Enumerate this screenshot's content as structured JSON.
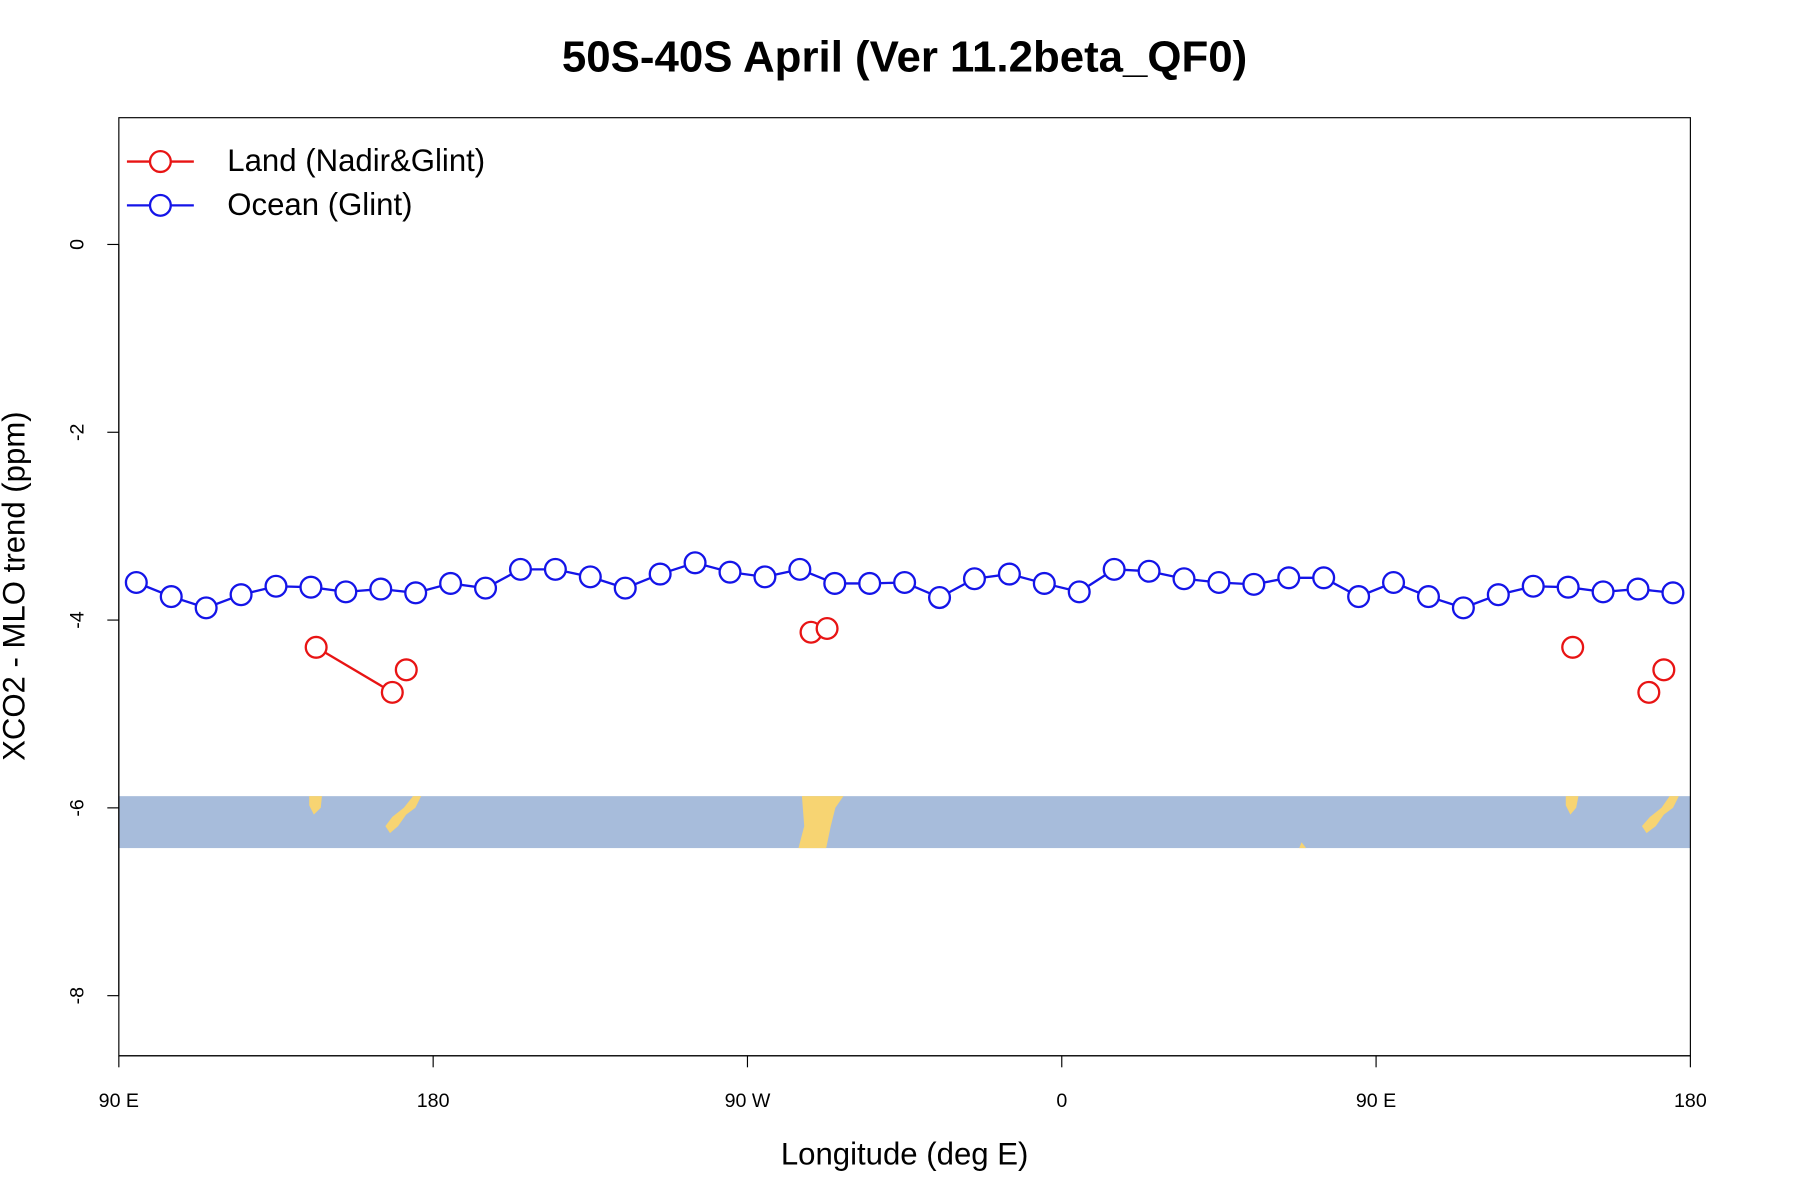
{
  "chart_data": {
    "type": "line",
    "title": "50S-40S April (Ver 11.2beta_QF0)",
    "xlabel": "Longitude (deg E)",
    "ylabel": "XCO2 - MLO trend (ppm)",
    "xlim": [
      90,
      540
    ],
    "ylim": [
      -8.64,
      1.35
    ],
    "xticks": [
      {
        "value": 90,
        "label": "90 E"
      },
      180,
      {
        "value": 270,
        "label": "90 W"
      },
      {
        "value": 360,
        "label": "0"
      },
      {
        "value": 450,
        "label": "90 E"
      },
      {
        "value": 540,
        "label": "180"
      }
    ],
    "yticks": [
      0,
      -2,
      -4,
      -6,
      -8
    ],
    "legend": "top-left",
    "series": [
      {
        "name": "Land (Nadir&Glint)",
        "color": "#e81414",
        "x": [
          146.5,
          168.3,
          null,
          172.3,
          null,
          288.2,
          null,
          292.8,
          null,
          506.3,
          null,
          528.1,
          null,
          532.4
        ],
        "values": [
          -4.29,
          -4.77,
          null,
          -4.53,
          null,
          -4.13,
          null,
          -4.09,
          null,
          -4.29,
          null,
          -4.77,
          null,
          -4.53
        ]
      },
      {
        "name": "Ocean (Glint)",
        "color": "#1414e8",
        "x": [
          95,
          105,
          115,
          125,
          135,
          145,
          155,
          165,
          175,
          185,
          195,
          205,
          215,
          225,
          235,
          245,
          255,
          265,
          275,
          285,
          295,
          305,
          315,
          325,
          335,
          345,
          355,
          365,
          375,
          385,
          395,
          405,
          415,
          425,
          435,
          445,
          455,
          465,
          475,
          485,
          495,
          505,
          515,
          525,
          535
        ],
        "values": [
          -3.6,
          -3.75,
          -3.87,
          -3.73,
          -3.64,
          -3.65,
          -3.7,
          -3.67,
          -3.71,
          -3.61,
          -3.66,
          -3.46,
          -3.46,
          -3.54,
          -3.66,
          -3.51,
          -3.39,
          -3.49,
          -3.54,
          -3.46,
          -3.61,
          -3.61,
          -3.6,
          -3.76,
          -3.56,
          -3.51,
          -3.61,
          -3.7,
          -3.46,
          -3.48,
          -3.56,
          -3.6,
          -3.62,
          -3.55,
          -3.55,
          -3.75,
          -3.6,
          -3.75,
          -3.87,
          -3.73,
          -3.64,
          -3.65,
          -3.7,
          -3.67,
          -3.71
        ]
      }
    ]
  }
}
